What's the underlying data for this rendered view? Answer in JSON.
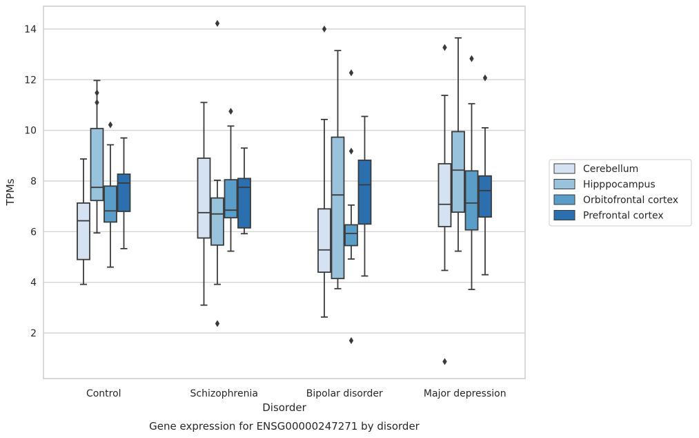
{
  "chart_data": {
    "type": "box",
    "caption": "Gene expression for ENSG00000247271 by disorder",
    "xlabel": "Disorder",
    "ylabel": "TPMs",
    "ylim": [
      0.2,
      14.9
    ],
    "yticks": [
      2,
      4,
      6,
      8,
      10,
      12,
      14
    ],
    "grid": "horizontal",
    "legend_position": "right",
    "categories": [
      "Control",
      "Schizophrenia",
      "Bipolar disorder",
      "Major depression"
    ],
    "series": [
      {
        "name": "Cerebellum",
        "color": "#d4e2f1",
        "boxes": [
          {
            "whisker_low": 3.92,
            "q1": 4.9,
            "median": 6.43,
            "q3": 7.13,
            "whisker_high": 8.87,
            "outliers": []
          },
          {
            "whisker_low": 3.1,
            "q1": 5.75,
            "median": 6.75,
            "q3": 8.9,
            "whisker_high": 11.1,
            "outliers": []
          },
          {
            "whisker_low": 2.63,
            "q1": 4.4,
            "median": 5.28,
            "q3": 6.9,
            "whisker_high": 10.43,
            "outliers": [
              14.0
            ]
          },
          {
            "whisker_low": 4.47,
            "q1": 6.2,
            "median": 7.08,
            "q3": 8.68,
            "whisker_high": 11.38,
            "outliers": [
              13.27,
              0.87
            ]
          }
        ]
      },
      {
        "name": "Hipppocampus",
        "color": "#99c2dd",
        "boxes": [
          {
            "whisker_low": 5.95,
            "q1": 7.23,
            "median": 7.75,
            "q3": 10.07,
            "whisker_high": 11.97,
            "outliers": [
              11.48,
              11.1
            ]
          },
          {
            "whisker_low": 3.92,
            "q1": 5.47,
            "median": 6.7,
            "q3": 7.33,
            "whisker_high": 8.03,
            "outliers": [
              14.22,
              2.37
            ]
          },
          {
            "whisker_low": 3.75,
            "q1": 4.15,
            "median": 7.45,
            "q3": 9.73,
            "whisker_high": 13.15,
            "outliers": []
          },
          {
            "whisker_low": 5.23,
            "q1": 6.77,
            "median": 8.43,
            "q3": 9.95,
            "whisker_high": 13.65,
            "outliers": []
          }
        ]
      },
      {
        "name": "Orbitofrontal cortex",
        "color": "#5a9dc8",
        "boxes": [
          {
            "whisker_low": 4.6,
            "q1": 6.38,
            "median": 6.82,
            "q3": 7.8,
            "whisker_high": 9.43,
            "outliers": [
              10.22
            ]
          },
          {
            "whisker_low": 5.23,
            "q1": 6.55,
            "median": 6.85,
            "q3": 8.05,
            "whisker_high": 10.17,
            "outliers": [
              10.75
            ]
          },
          {
            "whisker_low": 4.92,
            "q1": 5.45,
            "median": 5.93,
            "q3": 6.27,
            "whisker_high": 7.05,
            "outliers": [
              12.27,
              9.18,
              1.7
            ]
          },
          {
            "whisker_low": 3.72,
            "q1": 6.07,
            "median": 7.13,
            "q3": 8.4,
            "whisker_high": 11.05,
            "outliers": [
              12.83
            ]
          }
        ]
      },
      {
        "name": "Prefrontal cortex",
        "color": "#2c6fae",
        "boxes": [
          {
            "whisker_low": 5.33,
            "q1": 6.8,
            "median": 7.92,
            "q3": 8.27,
            "whisker_high": 9.7,
            "outliers": []
          },
          {
            "whisker_low": 5.92,
            "q1": 6.15,
            "median": 7.75,
            "q3": 8.1,
            "whisker_high": 9.3,
            "outliers": []
          },
          {
            "whisker_low": 4.25,
            "q1": 6.3,
            "median": 7.85,
            "q3": 8.82,
            "whisker_high": 10.55,
            "outliers": []
          },
          {
            "whisker_low": 4.3,
            "q1": 6.58,
            "median": 7.62,
            "q3": 8.2,
            "whisker_high": 10.1,
            "outliers": [
              12.07
            ]
          }
        ]
      }
    ]
  }
}
